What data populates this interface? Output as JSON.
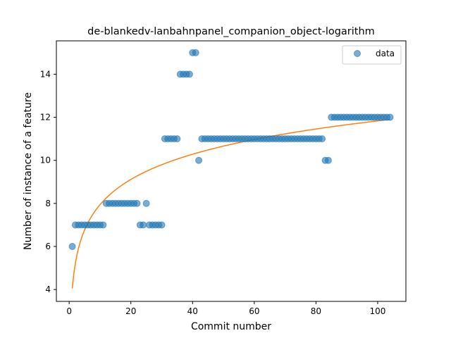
{
  "chart_data": {
    "type": "scatter",
    "title": "de-blankedv-lanbahnpanel_companion_object-logarithm",
    "xlabel": "Commit number",
    "ylabel": "Number of instance of a feature",
    "xlim": [
      -4.15,
      109.15
    ],
    "ylim": [
      3.45,
      15.55
    ],
    "xticks": [
      0,
      20,
      40,
      60,
      80,
      100
    ],
    "yticks": [
      4,
      6,
      8,
      10,
      12,
      14
    ],
    "grid": false,
    "legend": {
      "position": "top-right",
      "entries": [
        "data"
      ]
    },
    "colors": {
      "data": "#1f77b4",
      "fit": "#ff7f0e"
    },
    "series": [
      {
        "name": "data",
        "kind": "scatter",
        "x": [
          1,
          2,
          3,
          4,
          5,
          6,
          7,
          8,
          9,
          10,
          11,
          12,
          13,
          14,
          15,
          16,
          17,
          18,
          19,
          20,
          21,
          22,
          23,
          24,
          25,
          26,
          27,
          28,
          29,
          30,
          31,
          32,
          33,
          34,
          35,
          36,
          37,
          38,
          39,
          40,
          41,
          42,
          43,
          44,
          45,
          46,
          47,
          48,
          49,
          50,
          51,
          52,
          53,
          54,
          55,
          56,
          57,
          58,
          59,
          60,
          61,
          62,
          63,
          64,
          65,
          66,
          67,
          68,
          69,
          70,
          71,
          72,
          73,
          74,
          75,
          76,
          77,
          78,
          79,
          80,
          81,
          82,
          83,
          84,
          85,
          86,
          87,
          88,
          89,
          90,
          91,
          92,
          93,
          94,
          95,
          96,
          97,
          98,
          99,
          100,
          101,
          102,
          103,
          104
        ],
        "y": [
          6,
          7,
          7,
          7,
          7,
          7,
          7,
          7,
          7,
          7,
          7,
          8,
          8,
          8,
          8,
          8,
          8,
          8,
          8,
          8,
          8,
          8,
          7,
          7,
          8,
          7,
          7,
          7,
          7,
          7,
          11,
          11,
          11,
          11,
          11,
          14,
          14,
          14,
          14,
          15,
          15,
          10,
          11,
          11,
          11,
          11,
          11,
          11,
          11,
          11,
          11,
          11,
          11,
          11,
          11,
          11,
          11,
          11,
          11,
          11,
          11,
          11,
          11,
          11,
          11,
          11,
          11,
          11,
          11,
          11,
          11,
          11,
          11,
          11,
          11,
          11,
          11,
          11,
          11,
          11,
          11,
          11,
          10,
          10,
          12,
          12,
          12,
          12,
          12,
          12,
          12,
          12,
          12,
          12,
          12,
          12,
          12,
          12,
          12,
          12,
          12,
          12,
          12,
          12
        ]
      },
      {
        "name": "",
        "kind": "line",
        "model": "logarithmic",
        "a": 4.05,
        "b": 1.69
      }
    ]
  }
}
